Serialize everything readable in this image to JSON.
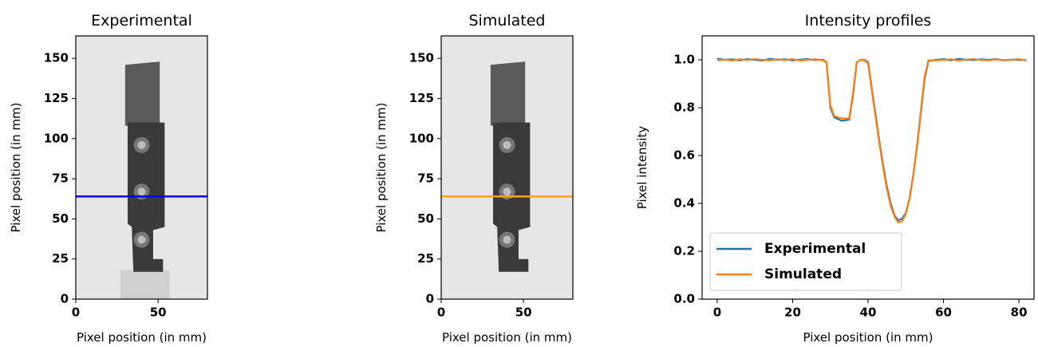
{
  "chart_data": [
    {
      "type": "image",
      "title": "Experimental",
      "x_label": "Pixel position (in mm)",
      "y_label": "Pixel position (in mm)",
      "xlim": [
        0,
        80
      ],
      "ylim": [
        0,
        164
      ],
      "xticks": [
        0,
        50
      ],
      "yticks": [
        0,
        25,
        50,
        75,
        100,
        125,
        150
      ],
      "hline": 64,
      "hline_color": "#0000ff"
    },
    {
      "type": "image",
      "title": "Simulated",
      "x_label": "Pixel position (in mm)",
      "y_label": "Pixel position (in mm)",
      "xlim": [
        0,
        80
      ],
      "ylim": [
        0,
        164
      ],
      "xticks": [
        0,
        50
      ],
      "yticks": [
        0,
        25,
        50,
        75,
        100,
        125,
        150
      ],
      "hline": 64,
      "hline_color": "#ffa500"
    },
    {
      "type": "line",
      "title": "Intensity profiles",
      "x_label": "Pixel position (in mm)",
      "y_label": "Pixel intensity",
      "xlim": [
        -4,
        84
      ],
      "ylim": [
        0,
        1.1
      ],
      "xticks": [
        0,
        20,
        40,
        60,
        80
      ],
      "yticks": [
        {
          "value": 0,
          "label": "0.0"
        },
        0.2,
        0.4,
        0.6,
        0.8,
        {
          "value": 1,
          "label": "1.0"
        }
      ],
      "legend": "lower left",
      "x": [
        0,
        2,
        4,
        6,
        8,
        10,
        12,
        14,
        16,
        18,
        20,
        22,
        24,
        26,
        28,
        29,
        30,
        31,
        33,
        35,
        36,
        37,
        38,
        39,
        40,
        41,
        42,
        43,
        44,
        45,
        46,
        47,
        48,
        49,
        50,
        51,
        52,
        53,
        54,
        55,
        56,
        58,
        60,
        62,
        64,
        66,
        68,
        70,
        72,
        74,
        76,
        78,
        80,
        82
      ],
      "series": [
        {
          "name": "Experimental",
          "color": "#1f77b4",
          "values": [
            1.005,
            1.0,
            1.002,
            0.998,
            1.003,
            1.0,
            0.997,
            1.004,
            1.0,
            1.002,
            0.998,
            1.001,
            1.003,
            0.999,
            1.001,
            0.99,
            0.8,
            0.76,
            0.745,
            0.75,
            0.85,
            0.99,
            1.0,
            1.0,
            0.99,
            0.88,
            0.77,
            0.66,
            0.56,
            0.47,
            0.4,
            0.35,
            0.33,
            0.335,
            0.36,
            0.42,
            0.52,
            0.64,
            0.78,
            0.92,
            0.995,
            1.0,
            1.003,
            0.998,
            1.004,
            1.0,
            0.999,
            1.002,
            1.0,
            1.003,
            0.998,
            1.001,
            1.0,
            0.998
          ]
        },
        {
          "name": "Simulated",
          "color": "#ff7f0e",
          "values": [
            0.998,
            1.001,
            0.997,
            1.002,
            0.999,
            1.003,
            1.0,
            0.998,
            1.002,
            0.999,
            1.003,
            0.997,
            1.0,
            1.002,
            0.998,
            0.99,
            0.81,
            0.765,
            0.755,
            0.755,
            0.86,
            0.99,
            1.0,
            0.998,
            0.985,
            0.87,
            0.76,
            0.65,
            0.55,
            0.46,
            0.39,
            0.345,
            0.32,
            0.325,
            0.355,
            0.42,
            0.52,
            0.645,
            0.79,
            0.93,
            0.998,
            0.998,
            1.0,
            1.002,
            0.997,
            1.001,
            1.003,
            0.999,
            0.998,
            1.002,
            0.999,
            1.0,
            1.003,
            0.997
          ]
        }
      ]
    }
  ]
}
